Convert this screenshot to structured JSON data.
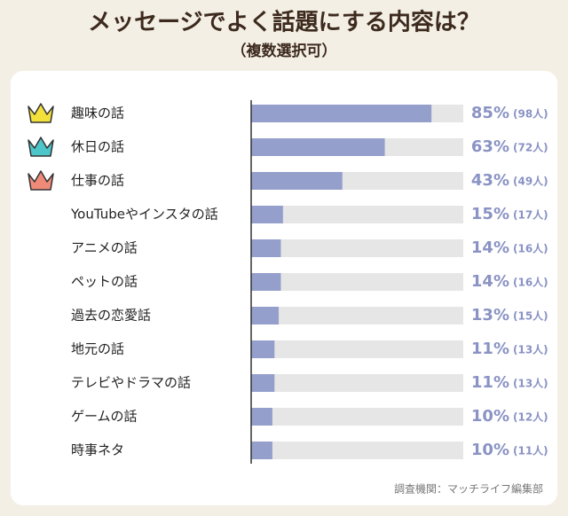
{
  "chart_data": {
    "type": "bar",
    "title": "メッセージでよく話題にする内容は？",
    "subtitle": "（複数選択可）",
    "categories": [
      "趣味の話",
      "休日の話",
      "仕事の話",
      "YouTubeやインスタの話",
      "アニメの話",
      "ペットの話",
      "過去の恋愛話",
      "地元の話",
      "テレビやドラマの話",
      "ゲームの話",
      "時事ネタ"
    ],
    "values": [
      85,
      63,
      43,
      15,
      14,
      14,
      13,
      11,
      11,
      10,
      10
    ],
    "value_labels": [
      "85%",
      "63%",
      "43%",
      "15%",
      "14%",
      "14%",
      "13%",
      "11%",
      "11%",
      "10%",
      "10%"
    ],
    "count_labels": [
      "(98人)",
      "(72人)",
      "(49人)",
      "(17人)",
      "(16人)",
      "(16人)",
      "(15人)",
      "(13人)",
      "(13人)",
      "(12人)",
      "(11人)"
    ],
    "xlim": [
      0,
      100
    ],
    "color": "#959fcc",
    "source": "調査機関：マッチライフ編集部"
  }
}
